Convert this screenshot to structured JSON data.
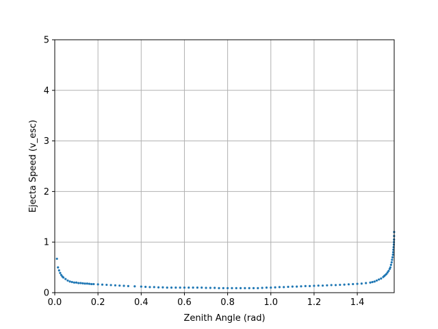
{
  "chart_data": {
    "type": "scatter",
    "title": "",
    "xlabel": "Zenith Angle (rad)",
    "ylabel": "Ejecta Speed (v_esc)",
    "xlim": [
      0,
      1.5708
    ],
    "ylim": [
      0,
      5
    ],
    "xticks": [
      0,
      0.2,
      0.4,
      0.6,
      0.8,
      1.0,
      1.2,
      1.4
    ],
    "xtick_labels": [
      "0.0",
      "0.2",
      "0.4",
      "0.6",
      "0.8",
      "1.0",
      "1.2",
      "1.4"
    ],
    "yticks": [
      0,
      1,
      2,
      3,
      4,
      5
    ],
    "ytick_labels": [
      "0",
      "1",
      "2",
      "3",
      "4",
      "5"
    ],
    "grid": true,
    "color": "#1f77b4",
    "series": [
      {
        "name": "",
        "x": [
          0.01,
          0.015,
          0.02,
          0.025,
          0.03,
          0.035,
          0.04,
          0.05,
          0.06,
          0.07,
          0.08,
          0.09,
          0.1,
          0.11,
          0.12,
          0.13,
          0.14,
          0.15,
          0.16,
          0.17,
          0.18,
          0.2,
          0.22,
          0.24,
          0.26,
          0.28,
          0.3,
          0.32,
          0.34,
          0.37,
          0.4,
          0.42,
          0.44,
          0.46,
          0.48,
          0.5,
          0.52,
          0.54,
          0.56,
          0.58,
          0.6,
          0.62,
          0.64,
          0.66,
          0.68,
          0.7,
          0.72,
          0.74,
          0.76,
          0.78,
          0.8,
          0.82,
          0.84,
          0.86,
          0.88,
          0.9,
          0.92,
          0.94,
          0.96,
          0.98,
          1.0,
          1.02,
          1.04,
          1.06,
          1.08,
          1.1,
          1.12,
          1.14,
          1.16,
          1.18,
          1.2,
          1.22,
          1.24,
          1.26,
          1.28,
          1.3,
          1.32,
          1.34,
          1.36,
          1.38,
          1.4,
          1.42,
          1.44,
          1.46,
          1.47,
          1.48,
          1.49,
          1.5,
          1.51,
          1.52,
          1.525,
          1.53,
          1.535,
          1.54,
          1.545,
          1.55,
          1.553,
          1.556,
          1.559,
          1.561,
          1.563,
          1.565,
          1.566,
          1.567,
          1.568,
          1.569,
          1.5695,
          1.57,
          1.5703,
          1.5705
        ],
        "y": [
          0.67,
          0.5,
          0.44,
          0.39,
          0.35,
          0.32,
          0.3,
          0.27,
          0.24,
          0.22,
          0.21,
          0.2,
          0.2,
          0.19,
          0.19,
          0.185,
          0.18,
          0.18,
          0.175,
          0.17,
          0.17,
          0.165,
          0.16,
          0.155,
          0.15,
          0.145,
          0.14,
          0.135,
          0.13,
          0.125,
          0.12,
          0.115,
          0.11,
          0.11,
          0.105,
          0.105,
          0.1,
          0.1,
          0.1,
          0.1,
          0.1,
          0.1,
          0.1,
          0.1,
          0.1,
          0.095,
          0.095,
          0.095,
          0.09,
          0.09,
          0.09,
          0.09,
          0.09,
          0.09,
          0.09,
          0.09,
          0.09,
          0.09,
          0.095,
          0.1,
          0.1,
          0.105,
          0.11,
          0.11,
          0.115,
          0.12,
          0.12,
          0.125,
          0.13,
          0.13,
          0.135,
          0.14,
          0.14,
          0.145,
          0.15,
          0.15,
          0.155,
          0.16,
          0.165,
          0.17,
          0.175,
          0.18,
          0.19,
          0.2,
          0.21,
          0.22,
          0.24,
          0.26,
          0.28,
          0.31,
          0.33,
          0.35,
          0.37,
          0.4,
          0.43,
          0.47,
          0.5,
          0.55,
          0.6,
          0.65,
          0.7,
          0.75,
          0.8,
          0.85,
          0.9,
          0.95,
          1.0,
          1.05,
          1.12,
          1.2
        ]
      }
    ]
  }
}
